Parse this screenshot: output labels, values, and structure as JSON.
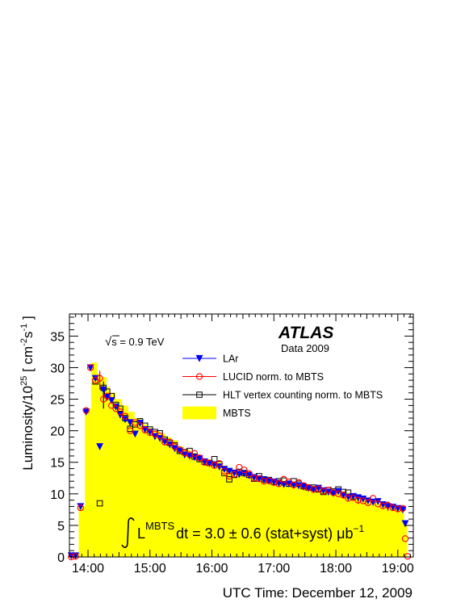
{
  "chart_data": {
    "type": "line",
    "title": "",
    "xlabel": "UTC Time: December 12, 2009",
    "ylabel": "Luminosity/10^25 [ cm^-2 s^-1 ]",
    "ylabel_parts": {
      "main": "Luminosity/10",
      "exp": "25",
      "unit_open": " [ cm",
      "unit_e1": "-2",
      "unit_mid": "s",
      "unit_e2": "-1",
      "unit_close": "]"
    },
    "xlim": [
      13.7,
      19.25
    ],
    "ylim": [
      0,
      38.5
    ],
    "x_ticks": [
      14,
      15,
      16,
      17,
      18,
      19
    ],
    "x_tick_labels": [
      "14:00",
      "15:00",
      "16:00",
      "17:00",
      "18:00",
      "19:00"
    ],
    "y_ticks": [
      0,
      5,
      10,
      15,
      20,
      25,
      30,
      35
    ],
    "y_tick_labels": [
      "0",
      "5",
      "10",
      "15",
      "20",
      "25",
      "30",
      "35"
    ],
    "grid": false,
    "legend_position": "top-right",
    "annotations": {
      "atlas": "ATLAS",
      "data": "Data 2009",
      "energy_sqrt": "√",
      "energy_rest": "s = 0.9 TeV",
      "integral_L": "L",
      "integral_sup": "MBTS",
      "integral_rest": "dt = 3.0 ± 0.6 (stat+syst) μb",
      "integral_unit_sup": "−1"
    },
    "legend": [
      {
        "name": "LAr",
        "marker": "down-triangle",
        "color": "#0000ff"
      },
      {
        "name": "LUCID norm. to MBTS",
        "marker": "open-circle",
        "color": "#ff0000"
      },
      {
        "name": "HLT vertex counting norm. to MBTS",
        "marker": "open-square",
        "color": "#000000"
      },
      {
        "name": "MBTS",
        "marker": "filled-box",
        "color": "#ffff00"
      }
    ],
    "mbts": {
      "x": [
        13.7,
        13.8,
        13.85,
        13.95,
        14.05,
        14.15,
        14.2,
        14.3,
        14.35,
        14.45,
        14.55,
        14.65,
        14.75,
        14.85,
        14.95,
        15.05,
        15.15,
        15.25,
        15.35,
        15.45,
        15.55,
        15.65,
        15.75,
        15.85,
        15.95,
        16.05,
        16.15,
        16.25,
        16.35,
        16.45,
        16.55,
        16.65,
        16.75,
        16.85,
        16.95,
        17.05,
        17.15,
        17.25,
        17.35,
        17.45,
        17.55,
        17.65,
        17.75,
        17.85,
        17.95,
        18.05,
        18.15,
        18.25,
        18.35,
        18.45,
        18.55,
        18.65,
        18.75,
        18.85,
        18.95,
        19.05,
        19.1,
        19.15,
        19.25
      ],
      "y": [
        0,
        0,
        8,
        23.5,
        30.8,
        29,
        28.5,
        27,
        26,
        25,
        24,
        23,
        22,
        21,
        20.5,
        20,
        19.5,
        19,
        18.5,
        17.5,
        17,
        16.5,
        16,
        15.5,
        15.2,
        15,
        14.5,
        14,
        13.8,
        13.5,
        13.2,
        13,
        12.8,
        12.6,
        12.4,
        12.3,
        12.1,
        12,
        11.8,
        11.6,
        11.4,
        11.2,
        11,
        10.8,
        10.6,
        10.4,
        10.2,
        10,
        9.6,
        9.2,
        8.8,
        8.5,
        8.2,
        8,
        7.8,
        7.5,
        5,
        0,
        0
      ]
    },
    "series": [
      {
        "name": "LAr",
        "x": [
          13.73,
          13.8,
          13.88,
          13.97,
          14.04,
          14.12,
          14.19,
          14.25,
          14.31,
          14.38,
          14.45,
          14.52,
          14.6,
          14.68,
          14.76,
          14.84,
          14.92,
          15.0,
          15.08,
          15.16,
          15.24,
          15.32,
          15.4,
          15.48,
          15.56,
          15.64,
          15.72,
          15.8,
          15.88,
          15.96,
          16.04,
          16.12,
          16.2,
          16.28,
          16.36,
          16.44,
          16.52,
          16.6,
          16.68,
          16.76,
          16.84,
          16.92,
          17.0,
          17.08,
          17.16,
          17.24,
          17.32,
          17.4,
          17.48,
          17.56,
          17.64,
          17.72,
          17.8,
          17.88,
          17.96,
          18.04,
          18.12,
          18.2,
          18.28,
          18.36,
          18.44,
          18.52,
          18.6,
          18.68,
          18.76,
          18.84,
          18.92,
          19.0,
          19.08,
          19.12
        ],
        "y": [
          0.2,
          0.2,
          8.0,
          23.0,
          30.0,
          28.3,
          17.5,
          26.5,
          25.3,
          24.8,
          23.8,
          22.5,
          21.8,
          21.3,
          19.5,
          21.2,
          20.2,
          19.8,
          19.1,
          18.8,
          18.3,
          17.8,
          17.2,
          16.8,
          16.2,
          16.0,
          15.8,
          15.6,
          15.1,
          14.8,
          14.6,
          14.3,
          13.9,
          13.6,
          13.3,
          13.1,
          13.2,
          12.9,
          12.6,
          12.4,
          12.2,
          12.0,
          11.9,
          11.7,
          11.5,
          11.6,
          11.4,
          11.3,
          11.1,
          10.9,
          10.7,
          10.9,
          10.5,
          10.3,
          10.1,
          10.4,
          9.8,
          9.5,
          9.6,
          9.4,
          9.2,
          8.9,
          8.7,
          8.8,
          8.3,
          8.0,
          7.9,
          7.7,
          7.5,
          5.3
        ]
      },
      {
        "name": "LUCID norm. to MBTS",
        "x": [
          13.73,
          13.8,
          13.88,
          13.97,
          14.04,
          14.12,
          14.19,
          14.25,
          14.31,
          14.38,
          14.45,
          14.52,
          14.6,
          14.68,
          14.76,
          14.84,
          14.92,
          15.0,
          15.08,
          15.16,
          15.24,
          15.32,
          15.4,
          15.48,
          15.56,
          15.64,
          15.72,
          15.8,
          15.88,
          15.96,
          16.04,
          16.12,
          16.2,
          16.28,
          16.36,
          16.44,
          16.52,
          16.6,
          16.68,
          16.76,
          16.84,
          16.92,
          17.0,
          17.08,
          17.16,
          17.24,
          17.32,
          17.4,
          17.48,
          17.56,
          17.64,
          17.72,
          17.8,
          17.88,
          17.96,
          18.04,
          18.12,
          18.2,
          18.28,
          18.36,
          18.44,
          18.52,
          18.6,
          18.68,
          18.76,
          18.84,
          18.92,
          19.0,
          19.08,
          19.12,
          19.16
        ],
        "y": [
          0.0,
          0.1,
          7.8,
          23.2,
          30.0,
          28.0,
          28.3,
          25.0,
          25.5,
          24.0,
          23.5,
          23.0,
          22.3,
          20.0,
          21.3,
          20.8,
          20.1,
          19.7,
          19.5,
          19.2,
          18.2,
          18.2,
          17.5,
          17.0,
          16.5,
          16.2,
          16.4,
          15.7,
          15.0,
          14.9,
          14.5,
          14.8,
          13.6,
          12.8,
          13.1,
          14.2,
          13.8,
          13.2,
          12.5,
          12.4,
          12.0,
          12.1,
          11.8,
          11.6,
          12.3,
          11.9,
          11.4,
          11.8,
          11.3,
          11.0,
          10.7,
          10.8,
          10.4,
          10.6,
          10.2,
          10.0,
          9.8,
          9.3,
          9.4,
          9.0,
          8.9,
          8.6,
          9.3,
          8.4,
          8.1,
          8.2,
          7.8,
          7.6,
          7.7,
          2.9,
          0.1
        ]
      },
      {
        "name": "HLT vertex counting norm. to MBTS",
        "x": [
          14.12,
          14.19,
          14.25,
          14.31,
          14.38,
          14.45,
          14.52,
          14.6,
          14.68,
          14.76,
          14.84,
          14.92,
          15.0,
          15.08,
          15.16,
          15.24,
          15.32,
          15.4,
          15.48,
          15.56,
          15.64,
          15.72,
          15.8,
          15.88,
          15.96,
          16.04,
          16.12,
          16.2,
          16.28,
          16.36,
          16.44,
          16.52,
          16.6,
          16.68,
          16.76,
          16.84,
          16.92,
          17.0,
          17.08,
          17.16,
          17.24,
          17.32,
          17.4,
          17.48,
          17.56,
          17.64,
          17.72,
          17.8,
          17.88,
          17.96,
          18.04,
          18.12,
          18.2,
          18.28
        ],
        "y": [
          27.8,
          8.5,
          26.8,
          26.2,
          25.5,
          24.1,
          23.5,
          22.0,
          20.3,
          21.0,
          21.5,
          20.8,
          20.2,
          19.8,
          19.6,
          18.6,
          18.1,
          17.7,
          16.8,
          16.6,
          16.8,
          15.9,
          15.5,
          15.1,
          14.9,
          15.5,
          14.7,
          13.3,
          12.3,
          13.0,
          13.5,
          13.3,
          13.0,
          12.4,
          12.8,
          12.3,
          12.2,
          11.9,
          12.0,
          12.1,
          11.6,
          12.0,
          11.6,
          11.2,
          11.0,
          11.0,
          10.7,
          10.3,
          10.6,
          10.4,
          10.7,
          10.3,
          10.2,
          9.6
        ]
      }
    ],
    "error_bars": [
      {
        "x": 14.19,
        "low": 26.5,
        "high": 29.5,
        "color": "#ff0000"
      },
      {
        "x": 14.25,
        "low": 23.5,
        "high": 27.8,
        "color": "#000000"
      },
      {
        "x": 18.36,
        "low": 8.4,
        "high": 9.8,
        "color": "#ff0000"
      },
      {
        "x": 18.84,
        "low": 7.3,
        "high": 8.8,
        "color": "#ff0000"
      },
      {
        "x": 16.44,
        "low": 12.6,
        "high": 13.8,
        "color": "#ff0000"
      }
    ],
    "colors": {
      "mbts": "#ffff00",
      "lar": "#0000ff",
      "lucid": "#ff0000",
      "hlt": "#000000"
    }
  }
}
